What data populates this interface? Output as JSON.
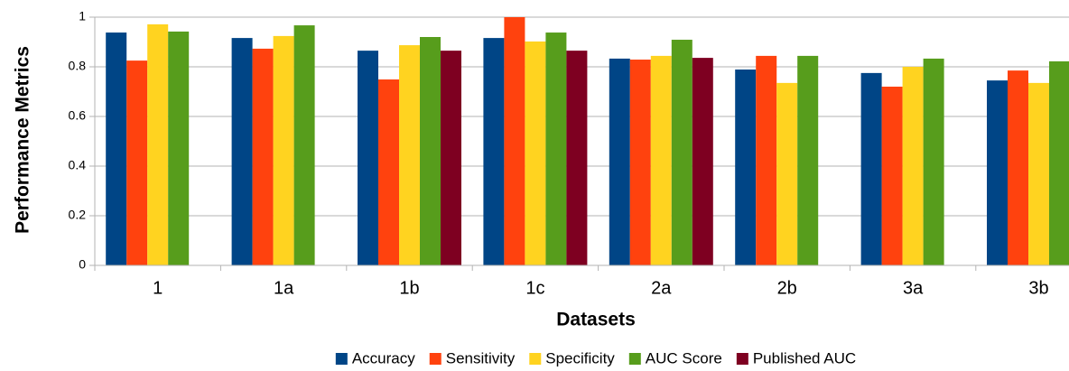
{
  "chart_data": {
    "type": "bar",
    "x_label": "Datasets",
    "y_label": "Performance Metrics",
    "categories": [
      "1",
      "1a",
      "1b",
      "1c",
      "2a",
      "2b",
      "3a",
      "3b"
    ],
    "series": [
      {
        "name": "Accuracy",
        "color": "#004586",
        "values": [
          0.938,
          0.916,
          0.865,
          0.916,
          0.833,
          0.789,
          0.775,
          0.745
        ]
      },
      {
        "name": "Sensitivity",
        "color": "#ff420e",
        "values": [
          0.825,
          0.873,
          0.749,
          1.0,
          0.829,
          0.844,
          0.72,
          0.785
        ]
      },
      {
        "name": "Specificity",
        "color": "#ffd320",
        "values": [
          0.971,
          0.924,
          0.887,
          0.902,
          0.844,
          0.735,
          0.8,
          0.735
        ]
      },
      {
        "name": "AUC Score",
        "color": "#579d1c",
        "values": [
          0.942,
          0.967,
          0.92,
          0.938,
          0.909,
          0.844,
          0.833,
          0.822
        ]
      },
      {
        "name": "Published AUC",
        "color": "#7e0021",
        "values": [
          null,
          null,
          0.865,
          0.865,
          0.836,
          null,
          null,
          null
        ]
      }
    ],
    "ylim": [
      0,
      1
    ],
    "yticks": [
      0,
      0.2,
      0.4,
      0.6,
      0.8,
      1
    ],
    "grid": true,
    "legend": "bottom"
  }
}
